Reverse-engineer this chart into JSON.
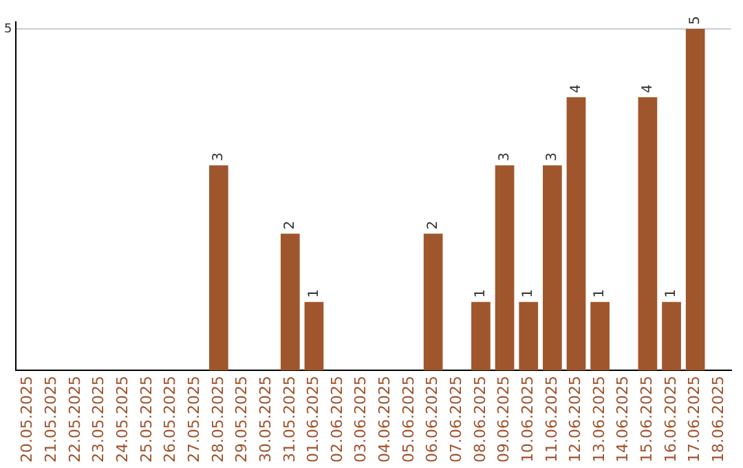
{
  "chart_data": {
    "type": "bar",
    "categories": [
      "20.05.2025",
      "21.05.2025",
      "22.05.2025",
      "23.05.2025",
      "24.05.2025",
      "25.05.2025",
      "26.05.2025",
      "27.05.2025",
      "28.05.2025",
      "29.05.2025",
      "30.05.2025",
      "31.05.2025",
      "01.06.2025",
      "02.06.2025",
      "03.06.2025",
      "04.06.2025",
      "05.06.2025",
      "06.06.2025",
      "07.06.2025",
      "08.06.2025",
      "09.06.2025",
      "10.06.2025",
      "11.06.2025",
      "12.06.2025",
      "13.06.2025",
      "14.06.2025",
      "15.06.2025",
      "16.06.2025",
      "17.06.2025",
      "18.06.2025"
    ],
    "values": [
      null,
      null,
      null,
      null,
      null,
      null,
      null,
      null,
      3,
      null,
      null,
      2,
      1,
      null,
      null,
      null,
      null,
      2,
      null,
      1,
      3,
      1,
      3,
      4,
      1,
      null,
      4,
      1,
      5,
      null
    ],
    "color": "#a0562c",
    "ylim": [
      0,
      5.1
    ],
    "yticks": [
      5
    ],
    "grid": "y",
    "data_labels": true,
    "legend": false
  }
}
